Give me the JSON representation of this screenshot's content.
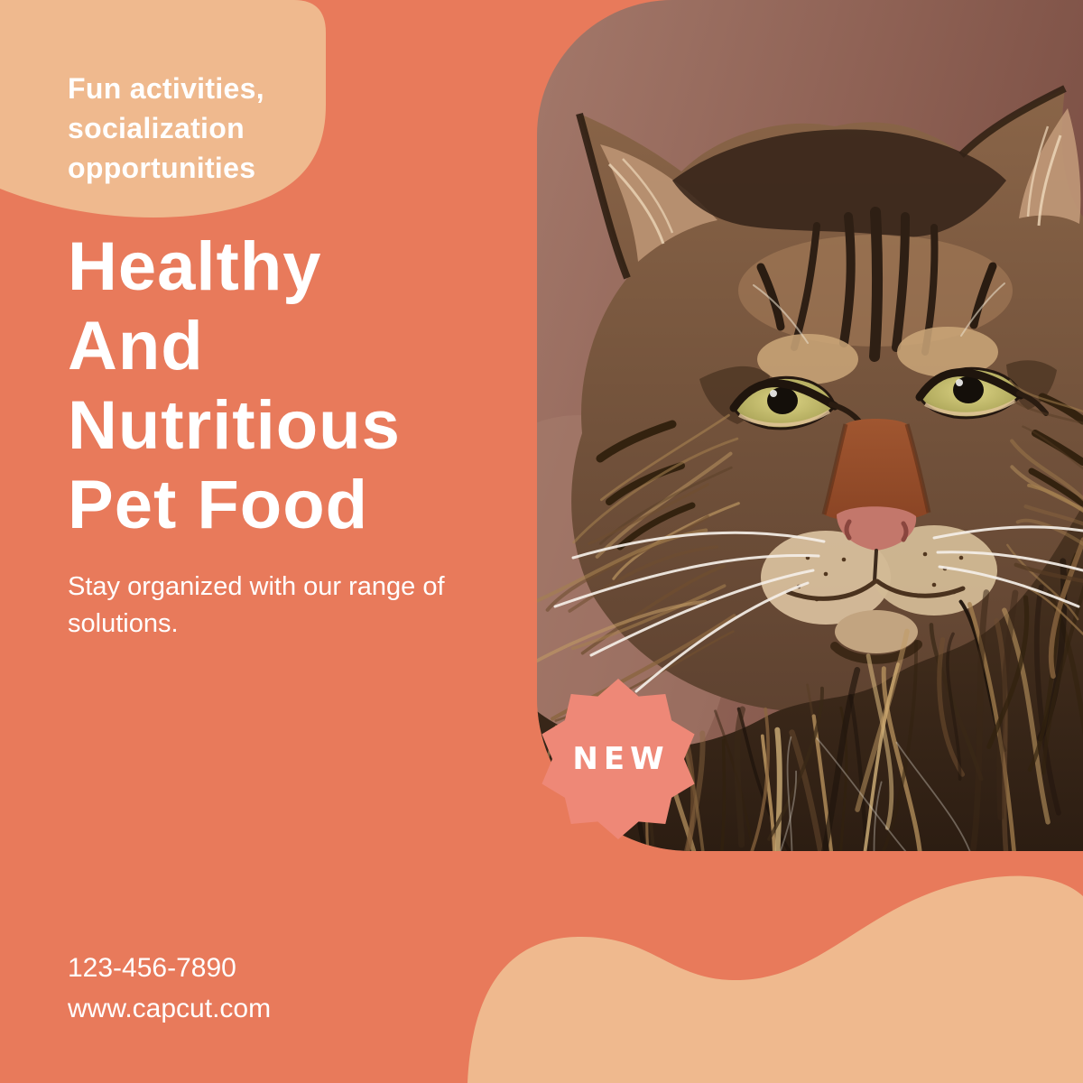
{
  "poster": {
    "tagline": "Fun activities,\nsocialization\nopportunities",
    "headline": "Healthy\nAnd\nNutritious\nPet Food",
    "subheadline": "Stay organized with our range of\nsolutions.",
    "badge_label": "NEW",
    "contact": {
      "phone": "123-456-7890",
      "website": "www.capcut.com"
    },
    "image": {
      "name": "tabby-cat-portrait"
    },
    "colors": {
      "background_coral": "#E87A5B",
      "blob_peach": "#EFB98E",
      "badge_salmon": "#EE8877",
      "text_white": "#FFFFFF",
      "photo_backdrop_mauve": "#8A5C4E"
    }
  }
}
